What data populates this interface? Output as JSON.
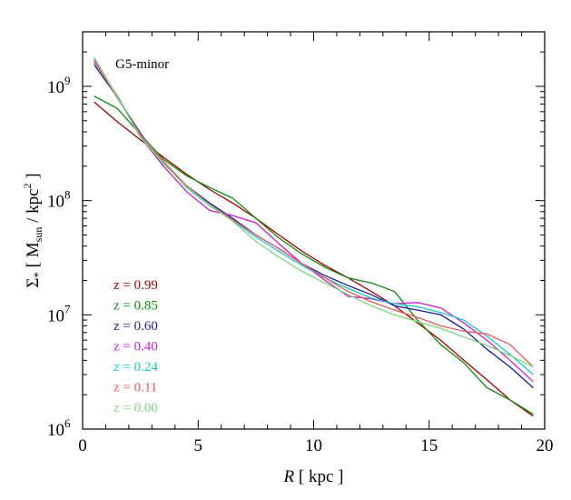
{
  "chart_data": {
    "type": "line",
    "title": "",
    "annotation": "G5-minor",
    "xlabel": "R [ kpc ]",
    "xlabel_var": "R",
    "xlabel_unit": "[ kpc ]",
    "ylabel": "Σ* [ Msun / kpc2 ]",
    "ylabel_parts": {
      "sigma": "Σ",
      "star": "*",
      "open": "[ M",
      "sub": "sun",
      "mid": " / kpc",
      "sup": "2",
      "close": " ]"
    },
    "xlim": [
      0,
      20
    ],
    "ylim": [
      1000000,
      3000000000
    ],
    "yscale": "log",
    "grid": false,
    "legend_position": "middle-left",
    "x_ticks": [
      0,
      5,
      10,
      15,
      20
    ],
    "x_tick_labels": [
      "0",
      "5",
      "10",
      "15",
      "20"
    ],
    "y_ticks": [
      1000000,
      10000000,
      100000000,
      1000000000
    ],
    "y_tick_labels": [
      {
        "base": "10",
        "exp": "6"
      },
      {
        "base": "10",
        "exp": "7"
      },
      {
        "base": "10",
        "exp": "8"
      },
      {
        "base": "10",
        "exp": "9"
      }
    ],
    "series": [
      {
        "name": "z = 0.99",
        "color": "#a50000",
        "x": [
          0.5,
          1.5,
          2.5,
          3.5,
          4.5,
          5.5,
          6.5,
          7.5,
          8.5,
          9.5,
          10.5,
          11.5,
          12.5,
          13.5,
          14.5,
          15.5,
          16.5,
          17.5,
          18.5,
          19.5
        ],
        "y": [
          730000000,
          490000000,
          340000000,
          240000000,
          170000000,
          125000000,
          95000000,
          70000000,
          50000000,
          36000000,
          27000000,
          21000000,
          16000000,
          12000000,
          8500000,
          6000000,
          4000000,
          2700000,
          1800000,
          1300000
        ]
      },
      {
        "name": "z = 0.85",
        "color": "#0d8a0d",
        "x": [
          0.5,
          1.5,
          2.5,
          3.5,
          4.5,
          5.5,
          6.5,
          7.5,
          8.5,
          9.5,
          10.5,
          11.5,
          12.5,
          13.5,
          14.5,
          15.5,
          16.5,
          17.5,
          18.5,
          19.5
        ],
        "y": [
          820000000,
          640000000,
          380000000,
          230000000,
          165000000,
          130000000,
          105000000,
          70000000,
          47000000,
          34000000,
          26000000,
          21000000,
          19000000,
          16000000,
          9000000,
          5500000,
          3800000,
          2300000,
          1800000,
          1350000
        ]
      },
      {
        "name": "z = 0.60",
        "color": "#1a1aa8",
        "x": [
          0.5,
          1.5,
          2.5,
          3.5,
          4.5,
          5.5,
          6.5,
          7.5,
          8.5,
          9.5,
          10.5,
          11.5,
          12.5,
          13.5,
          14.5,
          15.5,
          16.5,
          17.5,
          18.5,
          19.5
        ],
        "y": [
          1550000000,
          800000000,
          390000000,
          210000000,
          135000000,
          95000000,
          70000000,
          50000000,
          38000000,
          28000000,
          22000000,
          18000000,
          15000000,
          12000000,
          11000000,
          10000000,
          7500000,
          5000000,
          3500000,
          2300000
        ]
      },
      {
        "name": "z = 0.40",
        "color": "#d01ad0",
        "x": [
          0.5,
          1.5,
          2.5,
          3.5,
          4.5,
          5.5,
          6.5,
          7.5,
          8.5,
          9.5,
          10.5,
          11.5,
          12.5,
          13.5,
          14.5,
          15.5,
          16.5,
          17.5,
          18.5,
          19.5
        ],
        "y": [
          1650000000,
          830000000,
          360000000,
          200000000,
          120000000,
          82000000,
          74000000,
          64000000,
          42000000,
          28000000,
          20000000,
          14500000,
          13800000,
          12500000,
          12800000,
          11500000,
          8500000,
          6000000,
          4000000,
          2600000
        ]
      },
      {
        "name": "z = 0.24",
        "color": "#1ac8c8",
        "x": [
          0.5,
          1.5,
          2.5,
          3.5,
          4.5,
          5.5,
          6.5,
          7.5,
          8.5,
          9.5,
          10.5,
          11.5,
          12.5,
          13.5,
          14.5,
          15.5,
          16.5,
          17.5,
          18.5,
          19.5
        ],
        "y": [
          1750000000,
          820000000,
          370000000,
          215000000,
          130000000,
          90000000,
          67000000,
          48000000,
          36000000,
          27000000,
          21000000,
          17000000,
          14000000,
          12500000,
          11800000,
          10500000,
          9000000,
          6500000,
          4500000,
          3000000
        ]
      },
      {
        "name": "z = 0.11",
        "color": "#e85a5a",
        "x": [
          0.5,
          1.5,
          2.5,
          3.5,
          4.5,
          5.5,
          6.5,
          7.5,
          8.5,
          9.5,
          10.5,
          11.5,
          12.5,
          13.5,
          14.5,
          15.5,
          16.5,
          17.5,
          18.5,
          19.5
        ],
        "y": [
          1700000000,
          790000000,
          380000000,
          220000000,
          135000000,
          92000000,
          68000000,
          50000000,
          38000000,
          28000000,
          21000000,
          16000000,
          13000000,
          11000000,
          9500000,
          8000000,
          7200000,
          6800000,
          5500000,
          3500000
        ]
      },
      {
        "name": "z = 0.00",
        "color": "#7ad87a",
        "x": [
          0.5,
          1.5,
          2.5,
          3.5,
          4.5,
          5.5,
          6.5,
          7.5,
          8.5,
          9.5,
          10.5,
          11.5,
          12.5,
          13.5,
          14.5,
          15.5,
          16.5,
          17.5,
          18.5,
          19.5
        ],
        "y": [
          1800000000,
          810000000,
          360000000,
          210000000,
          132000000,
          91000000,
          66000000,
          44000000,
          32000000,
          24000000,
          19000000,
          15000000,
          12000000,
          10000000,
          8700000,
          7600000,
          6400000,
          5400000,
          4400000,
          3500000
        ]
      }
    ]
  }
}
